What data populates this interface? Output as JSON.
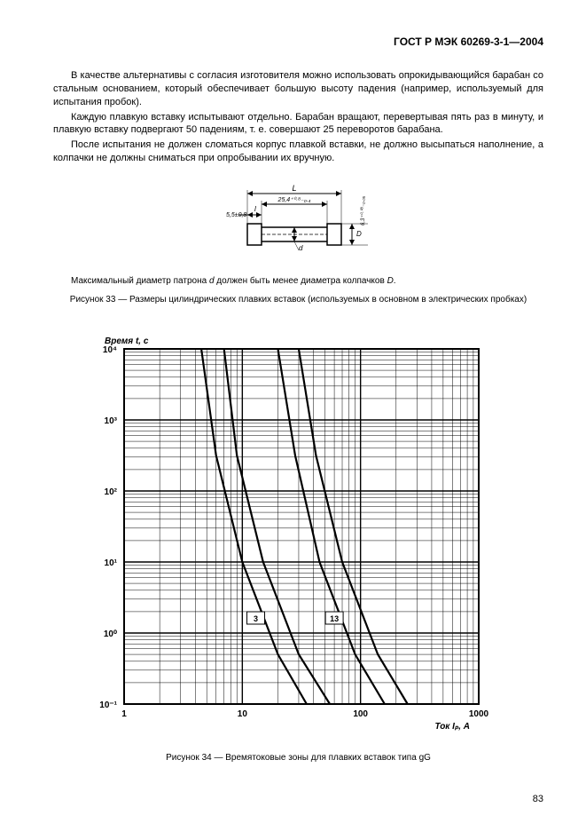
{
  "header": {
    "title": "ГОСТ Р МЭК 60269-3-1—2004"
  },
  "body": {
    "p1": "В качестве альтернативы с согласия изготовителя можно использовать опрокидывающийся барабан со стальным основанием, который обеспечивает большую высоту падения (например, используемый для испытания пробок).",
    "p2": "Каждую плавкую вставку испытывают отдельно. Барабан вращают, перевертывая пять раз в минуту, и плавкую вставку подвергают 50 падениям, т. е. совершают 25 переворотов барабана.",
    "p3": "После испытания не должен сломаться корпус плавкой вставки, не должно высыпаться наполнение, а колпачки не должны сниматься при опробывании их вручную."
  },
  "fig33": {
    "dimensions": {
      "L_label": "L",
      "L_tol": "25,4+0,8\n       -0,4",
      "l_label": "l",
      "l_val": "5,5±0,8",
      "D_label": "D",
      "D_val": "6,3+0,08\n     -0,05",
      "d_label": "d"
    },
    "caption_sub": "Максимальный диаметр патрона d должен быть менее диаметра колпачков D.",
    "title": "Рисунок 33 — Размеры цилиндрических плавких вставок (используемых в основном в электрических пробках)"
  },
  "fig34": {
    "ylabel": "Время t, с",
    "xlabel": "Ток I_p, А",
    "yticks": [
      "10⁻¹",
      "10⁰",
      "10¹",
      "10²",
      "10³",
      "10⁴"
    ],
    "xticks": [
      "1",
      "10",
      "100",
      "1000"
    ],
    "curve_labels": [
      "3",
      "13"
    ],
    "title": "Рисунок 34 — Времятоковые зоны для плавких вставок типа gG",
    "colors": {
      "grid": "#000000",
      "bg": "#ffffff",
      "curve": "#000000"
    }
  },
  "page_number": "83"
}
